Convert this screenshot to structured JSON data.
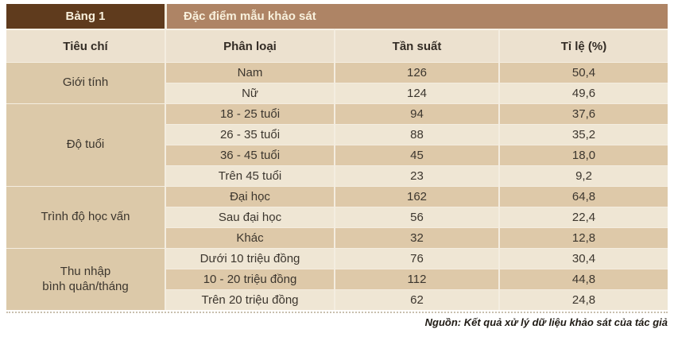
{
  "table": {
    "label": "Bảng 1",
    "title": "Đặc điểm mẫu khảo sát",
    "columns": {
      "criteria": "Tiêu chí",
      "category": "Phân loại",
      "frequency": "Tần suất",
      "percent": "Tỉ lệ (%)"
    },
    "groups": [
      {
        "label": "Giới tính",
        "rows": [
          {
            "category": "Nam",
            "frequency": "126",
            "percent": "50,4"
          },
          {
            "category": "Nữ",
            "frequency": "124",
            "percent": "49,6"
          }
        ]
      },
      {
        "label": "Độ tuổi",
        "rows": [
          {
            "category": "18 - 25 tuổi",
            "frequency": "94",
            "percent": "37,6"
          },
          {
            "category": "26 - 35 tuổi",
            "frequency": "88",
            "percent": "35,2"
          },
          {
            "category": "36 - 45 tuổi",
            "frequency": "45",
            "percent": "18,0"
          },
          {
            "category": "Trên 45 tuổi",
            "frequency": "23",
            "percent": "9,2"
          }
        ]
      },
      {
        "label": "Trình độ học vấn",
        "rows": [
          {
            "category": "Đại học",
            "frequency": "162",
            "percent": "64,8"
          },
          {
            "category": "Sau đại học",
            "frequency": "56",
            "percent": "22,4"
          },
          {
            "category": "Khác",
            "frequency": "32",
            "percent": "12,8"
          }
        ]
      },
      {
        "label": "Thu nhập\nbình quân/tháng",
        "rows": [
          {
            "category": "Dưới 10 triệu đồng",
            "frequency": "76",
            "percent": "30,4"
          },
          {
            "category": "10 - 20 triệu đồng",
            "frequency": "112",
            "percent": "44,8"
          },
          {
            "category": "Trên 20 triệu đồng",
            "frequency": "62",
            "percent": "24,8"
          }
        ]
      }
    ]
  },
  "footer": {
    "source": "Nguồn: Kết quả xử lý dữ liệu khảo sát của tác giả"
  },
  "colors": {
    "header_dark_brown": "#5f3b1d",
    "header_medium_brown": "#ae8465",
    "column_header_bg": "#ece1cf",
    "row_dark_tan": "#dec9a9",
    "row_light_cream": "#efe6d4",
    "group_cell_tan": "#dcc9a9",
    "header_text": "#f8f0dc",
    "body_text": "#3c362e"
  }
}
